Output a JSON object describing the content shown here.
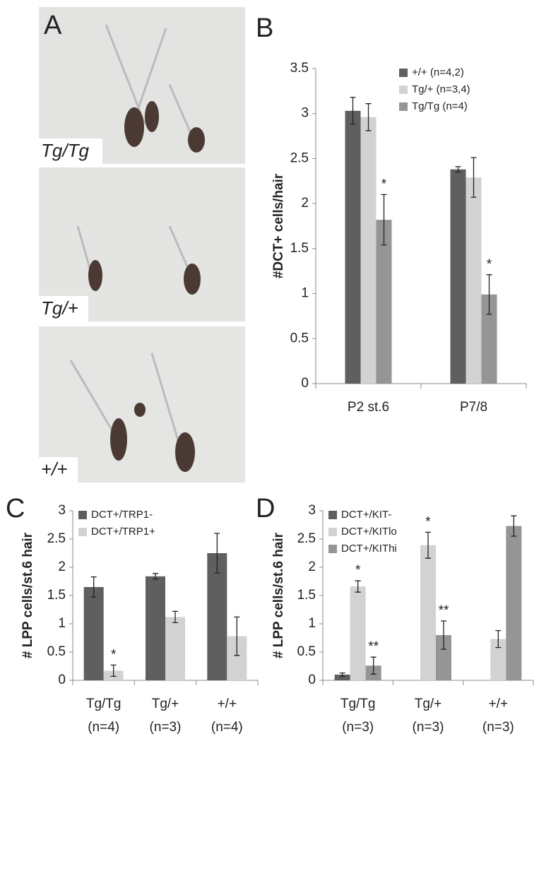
{
  "figure": {
    "panel_a": {
      "letter": "A",
      "images": [
        "Tg/Tg",
        "Tg/+",
        "+/+"
      ]
    }
  },
  "chart_data": [
    {
      "type": "bar",
      "panel_label": "B",
      "ylabel": "#DCT+ cells/hair",
      "categories": [
        "P2 st.6",
        "P7/8"
      ],
      "ylim": [
        0,
        3.5
      ],
      "yticks": [
        0,
        0.5,
        1,
        1.5,
        2,
        2.5,
        3,
        3.5
      ],
      "legend": "upper right",
      "series": [
        {
          "name": "+/+ (n=4,2)",
          "color": "#5f5f5f",
          "values": [
            3.03,
            2.38
          ],
          "errors": [
            0.15,
            0.03
          ],
          "annotations": [
            null,
            null
          ]
        },
        {
          "name": "Tg/+ (n=3,4)",
          "color": "#d2d2d2",
          "values": [
            2.96,
            2.29
          ],
          "errors": [
            0.15,
            0.22
          ],
          "annotations": [
            null,
            null
          ]
        },
        {
          "name": "Tg/Tg (n=4)",
          "color": "#959595",
          "values": [
            1.82,
            0.99
          ],
          "errors": [
            0.28,
            0.22
          ],
          "annotations": [
            "*",
            "*"
          ]
        }
      ]
    },
    {
      "type": "bar",
      "panel_label": "C",
      "ylabel": "# LPP cells/st.6 hair",
      "categories": [
        "Tg/Tg",
        "Tg/+",
        "+/+"
      ],
      "category_notes": [
        "(n=4)",
        "(n=3)",
        "(n=4)"
      ],
      "ylim": [
        0,
        3
      ],
      "yticks": [
        0,
        0.5,
        1,
        1.5,
        2,
        2.5,
        3
      ],
      "legend": "upper left",
      "series": [
        {
          "name": "DCT+/TRP1-",
          "color": "#5f5f5f",
          "values": [
            1.65,
            1.84,
            2.25
          ],
          "errors": [
            0.18,
            0.05,
            0.35
          ],
          "annotations": [
            null,
            null,
            null
          ]
        },
        {
          "name": "DCT+/TRP1+",
          "color": "#d2d2d2",
          "values": [
            0.17,
            1.12,
            0.78
          ],
          "errors": [
            0.1,
            0.1,
            0.34
          ],
          "annotations": [
            "*",
            null,
            null
          ]
        }
      ]
    },
    {
      "type": "bar",
      "panel_label": "D",
      "ylabel": "# LPP cells/st.6 hair",
      "categories": [
        "Tg/Tg",
        "Tg/+",
        "+/+"
      ],
      "category_notes": [
        "(n=3)",
        "(n=3)",
        "(n=3)"
      ],
      "ylim": [
        0,
        3
      ],
      "yticks": [
        0,
        0.5,
        1,
        1.5,
        2,
        2.5,
        3
      ],
      "legend": "upper left",
      "series": [
        {
          "name": "DCT+/KIT-",
          "color": "#5f5f5f",
          "values": [
            0.1,
            0,
            0
          ],
          "errors": [
            0.03,
            null,
            null
          ],
          "annotations": [
            null,
            null,
            null
          ]
        },
        {
          "name": "DCT+/KITlo",
          "color": "#d2d2d2",
          "values": [
            1.66,
            2.39,
            0.73
          ],
          "errors": [
            0.1,
            0.23,
            0.15
          ],
          "annotations": [
            "*",
            "*",
            null
          ]
        },
        {
          "name": "DCT+/KIThi",
          "color": "#959595",
          "values": [
            0.26,
            0.8,
            2.73
          ],
          "errors": [
            0.15,
            0.25,
            0.18
          ],
          "annotations": [
            "**",
            "**",
            null
          ]
        }
      ]
    }
  ]
}
